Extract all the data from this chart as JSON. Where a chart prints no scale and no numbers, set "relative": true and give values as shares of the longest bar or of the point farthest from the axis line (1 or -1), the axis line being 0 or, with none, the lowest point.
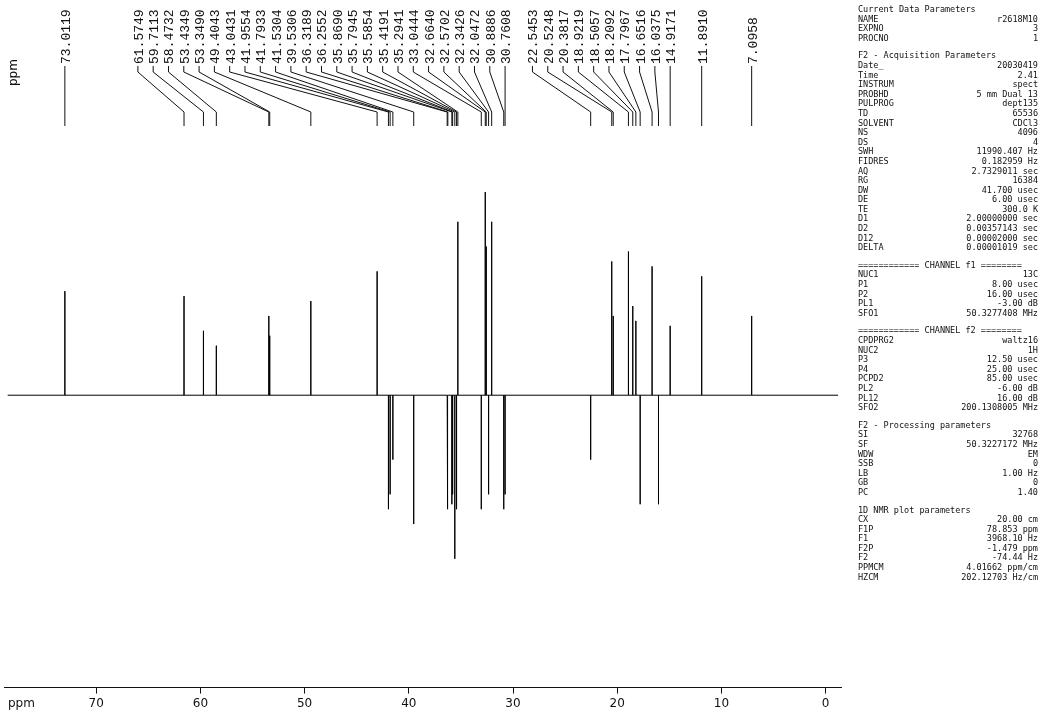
{
  "chart_data": {
    "type": "line",
    "relative": true,
    "marker": "none",
    "xlabel": "ppm",
    "xlim": [
      78.853,
      -1.479
    ],
    "xticks": [
      70,
      60,
      50,
      40,
      30,
      20,
      10,
      0
    ],
    "grid": false,
    "legend": false,
    "x": [
      78.5,
      73.0119,
      73.0119,
      73.0119,
      61.5749,
      61.5749,
      61.5749,
      59.7113,
      59.7113,
      59.7113,
      58.4732,
      58.4732,
      58.4732,
      53.4349,
      53.4349,
      53.4349,
      53.349,
      53.349,
      53.349,
      49.4043,
      49.4043,
      49.4043,
      43.0431,
      43.0431,
      43.0431,
      41.9554,
      41.9554,
      41.9554,
      41.7933,
      41.7933,
      41.7933,
      41.5304,
      41.5304,
      41.5304,
      39.5306,
      39.5306,
      39.5306,
      36.3189,
      36.3189,
      36.3189,
      36.2552,
      36.2552,
      36.2552,
      35.869,
      35.869,
      35.869,
      35.7945,
      35.7945,
      35.7945,
      35.5854,
      35.5854,
      35.5854,
      35.4191,
      35.4191,
      35.4191,
      35.2941,
      35.2941,
      35.2941,
      33.0444,
      33.0444,
      33.0444,
      32.664,
      32.664,
      32.664,
      32.5702,
      32.5702,
      32.5702,
      32.3426,
      32.3426,
      32.3426,
      32.0472,
      32.0472,
      32.0472,
      30.8886,
      30.8886,
      30.8886,
      30.7608,
      30.7608,
      30.7608,
      22.5453,
      22.5453,
      22.5453,
      20.5248,
      20.5248,
      20.5248,
      20.3817,
      20.3817,
      20.3817,
      18.9219,
      18.9219,
      18.9219,
      18.5057,
      18.5057,
      18.5057,
      18.2092,
      18.2092,
      18.2092,
      17.7967,
      17.7967,
      17.7967,
      16.6516,
      16.6516,
      16.6516,
      16.0375,
      16.0375,
      16.0375,
      14.9171,
      14.9171,
      14.9171,
      11.891,
      11.891,
      11.891,
      7.0958,
      7.0958,
      7.0958,
      -1.2
    ],
    "series": [
      {
        "color": "#000000",
        "values": [
          0.59,
          0.59,
          0.8,
          0.59,
          0.59,
          0.79,
          0.59,
          0.59,
          0.72,
          0.59,
          0.59,
          0.69,
          0.59,
          0.59,
          0.75,
          0.59,
          0.59,
          0.71,
          0.59,
          0.59,
          0.78,
          0.59,
          0.59,
          0.84,
          0.59,
          0.59,
          0.36,
          0.59,
          0.59,
          0.39,
          0.59,
          0.59,
          0.46,
          0.59,
          0.59,
          0.33,
          0.59,
          0.59,
          0.36,
          0.59,
          0.59,
          0.36,
          0.59,
          0.59,
          0.37,
          0.59,
          0.59,
          0.39,
          0.59,
          0.59,
          0.26,
          0.59,
          0.59,
          0.36,
          0.59,
          0.59,
          0.94,
          0.59,
          0.59,
          0.36,
          0.59,
          0.59,
          1,
          0.59,
          0.59,
          0.89,
          0.59,
          0.59,
          0.39,
          0.59,
          0.59,
          0.94,
          0.59,
          0.59,
          0.36,
          0.59,
          0.59,
          0.39,
          0.59,
          0.59,
          0.46,
          0.59,
          0.59,
          0.86,
          0.59,
          0.59,
          0.75,
          0.59,
          0.59,
          0.88,
          0.59,
          0.59,
          0.77,
          0.59,
          0.59,
          0.74,
          0.59,
          0.59,
          0.37,
          0.59,
          0.59,
          0.85,
          0.59,
          0.59,
          0.37,
          0.59,
          0.59,
          0.73,
          0.59,
          0.59,
          0.83,
          0.59,
          0.59,
          0.75,
          0.59,
          0.59
        ]
      }
    ],
    "annotations": [
      "73.0119",
      "61.5749",
      "59.7113",
      "58.4732",
      "53.4349",
      "53.3490",
      "49.4043",
      "43.0431",
      "41.9554",
      "41.7933",
      "41.5304",
      "39.5306",
      "36.3189",
      "36.2552",
      "35.8690",
      "35.7945",
      "35.5854",
      "35.4191",
      "35.2941",
      "33.0444",
      "32.6640",
      "32.5702",
      "32.3426",
      "32.0472",
      "30.8886",
      "30.7608",
      "22.5453",
      "20.5248",
      "20.3817",
      "18.9219",
      "18.5057",
      "18.2092",
      "17.7967",
      "16.6516",
      "16.0375",
      "14.9171",
      "11.8910",
      "7.0958",
      "ppm",
      "Current Data Parameters",
      "NAME\tr2618M10",
      "EXPNO\t3",
      "PROCNO\t1",
      "F2 - Acquisition Parameters",
      "Date_\t20030419",
      "Time\t2.41",
      "INSTRUM\tspect",
      "PROBHD\t5 mm Dual 13",
      "PULPROG\tdept135",
      "TD\t65536",
      "SOLVENT\tCDCl3",
      "NS\t4096",
      "DS\t4",
      "SWH\t11990.407 Hz",
      "FIDRES\t0.182959 Hz",
      "AQ\t2.7329011 sec",
      "RG\t16384",
      "DW\t41.700 usec",
      "DE\t6.00 usec",
      "TE\t300.0 K",
      "D1\t2.00000000 sec",
      "D2\t0.00357143 sec",
      "D12\t0.00002000 sec",
      "DELTA\t0.00001019 sec",
      "============ CHANNEL f1 ========",
      "NUC1\t13C",
      "P1\t8.00 usec",
      "P2\t16.00 usec",
      "PL1\t-3.00 dB",
      "SFO1\t50.3277408 MHz",
      "============ CHANNEL f2 ========",
      "CPDPRG2\twaltz16",
      "NUC2\t1H",
      "P3\t12.50 usec",
      "P4\t25.00 usec",
      "PCPD2\t85.00 usec",
      "PL2\t-6.00 dB",
      "PL12\t16.00 dB",
      "SFO2\t200.1308005 MHz",
      "F2 - Processing parameters",
      "SI\t32768",
      "SF\t50.3227172 MHz",
      "WDW\tEM",
      "SSB\t0",
      "LB\t1.00 Hz",
      "GB\t0",
      "PC\t1.40",
      "1D NMR plot parameters",
      "CX\t20.00 cm",
      "F1P\t78.853 ppm",
      "F1\t3968.10 Hz",
      "F2P\t-1.479 ppm",
      "F2\t-74.44 Hz",
      "PPMCM\t4.01662 ppm/cm",
      "HZCM\t202.12703 Hz/cm"
    ]
  }
}
